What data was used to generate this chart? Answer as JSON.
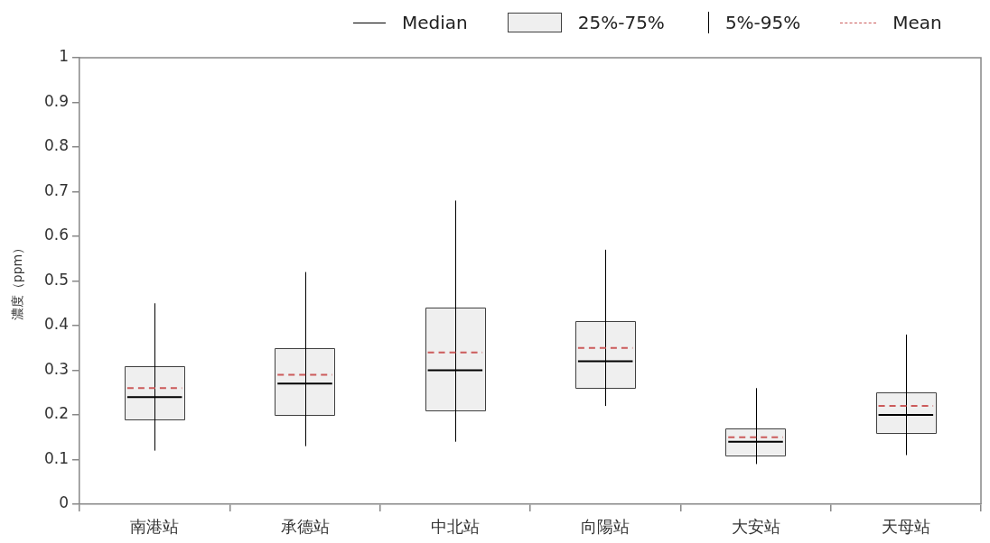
{
  "chart_data": {
    "type": "box",
    "ylabel": "濃度（ppm）",
    "categories": [
      "南港站",
      "承德站",
      "中北站",
      "向陽站",
      "大安站",
      "天母站"
    ],
    "boxes": [
      {
        "low": 0.12,
        "q1": 0.19,
        "median": 0.24,
        "q3": 0.31,
        "high": 0.45,
        "mean": 0.26
      },
      {
        "low": 0.13,
        "q1": 0.2,
        "median": 0.27,
        "q3": 0.35,
        "high": 0.52,
        "mean": 0.29
      },
      {
        "low": 0.14,
        "q1": 0.21,
        "median": 0.3,
        "q3": 0.44,
        "high": 0.68,
        "mean": 0.34
      },
      {
        "low": 0.22,
        "q1": 0.26,
        "median": 0.32,
        "q3": 0.41,
        "high": 0.57,
        "mean": 0.35
      },
      {
        "low": 0.09,
        "q1": 0.11,
        "median": 0.14,
        "q3": 0.17,
        "high": 0.26,
        "mean": 0.15
      },
      {
        "low": 0.11,
        "q1": 0.16,
        "median": 0.2,
        "q3": 0.25,
        "high": 0.38,
        "mean": 0.22
      }
    ],
    "color": "#efefef",
    "annotations": [
      "Median",
      "25%-75%",
      "5%-95%",
      "Mean"
    ],
    "ylim": [
      0,
      1
    ],
    "yticks": [
      0,
      0.1,
      0.2,
      0.3,
      0.4,
      0.5,
      0.6,
      0.7,
      0.8,
      0.9,
      1
    ],
    "grid": false
  }
}
